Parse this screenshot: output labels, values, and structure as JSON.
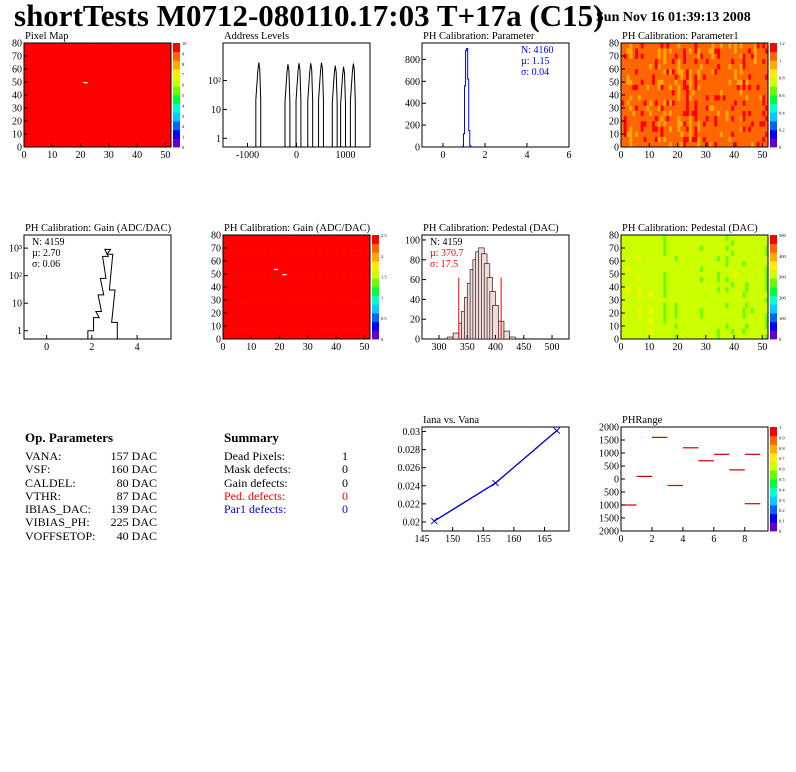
{
  "header": {
    "title": "shortTests M0712-080110.17:03 T+17a (C15)",
    "date": "Sun Nov 16 01:39:13 2008"
  },
  "colors": {
    "red": "#ff0000",
    "blue": "#0000ff",
    "hist": "#000000",
    "graph": "#0000cc",
    "phrange": "#cc0000",
    "pedfill": "#f4d9d9"
  },
  "op_params": {
    "title": "Op. Parameters",
    "rows": [
      {
        "name": "VANA:",
        "value": "157 DAC"
      },
      {
        "name": "VSF:",
        "value": "160 DAC"
      },
      {
        "name": "CALDEL:",
        "value": "80 DAC"
      },
      {
        "name": "VTHR:",
        "value": "87 DAC"
      },
      {
        "name": "IBIAS_DAC:",
        "value": "139 DAC"
      },
      {
        "name": "VIBIAS_PH:",
        "value": "225 DAC"
      },
      {
        "name": "VOFFSETOP:",
        "value": "40 DAC"
      }
    ]
  },
  "summary": {
    "title": "Summary",
    "rows": [
      {
        "name": "Dead Pixels:",
        "value": "1",
        "color": "#000000"
      },
      {
        "name": "Mask defects:",
        "value": "0",
        "color": "#000000"
      },
      {
        "name": "Gain defects:",
        "value": "0",
        "color": "#000000"
      },
      {
        "name": "Ped. defects:",
        "value": "0",
        "color": "#ff0000"
      },
      {
        "name": "Par1 defects:",
        "value": "0",
        "color": "#0000ff"
      }
    ]
  },
  "chart_data": [
    {
      "id": "pixelmap",
      "type": "heatmap",
      "title": "Pixel Map",
      "xlim": [
        0,
        52
      ],
      "ylim": [
        0,
        80
      ],
      "xticks": [
        0,
        10,
        20,
        30,
        40,
        50
      ],
      "yticks": [
        0,
        10,
        20,
        30,
        40,
        50,
        60,
        70,
        80
      ],
      "zlim": [
        0,
        10
      ],
      "zticks": [
        "0",
        "1",
        "2",
        "3",
        "4",
        "5",
        "6",
        "7",
        "8",
        "9",
        "10"
      ],
      "fill_value": 10,
      "mode": "uniform",
      "special_cells": [
        {
          "x": 21,
          "y": 49,
          "value": 0
        }
      ]
    },
    {
      "id": "addr",
      "type": "bar",
      "title": "Address Levels",
      "xlim": [
        -1500,
        1500
      ],
      "ylim": [
        0.5,
        2000
      ],
      "ylog": true,
      "xticks": [
        -1000,
        0,
        1000
      ],
      "yticks": [
        {
          "v": 1,
          "label": "1"
        },
        {
          "v": 10,
          "label": "10"
        },
        {
          "v": 100,
          "label": "10²"
        }
      ],
      "peaks": [
        {
          "x": -770,
          "h": 420
        },
        {
          "x": -175,
          "h": 370
        },
        {
          "x": 50,
          "h": 400
        },
        {
          "x": 290,
          "h": 400
        },
        {
          "x": 510,
          "h": 420
        },
        {
          "x": 790,
          "h": 330
        },
        {
          "x": 960,
          "h": 300
        },
        {
          "x": 1160,
          "h": 390
        }
      ]
    },
    {
      "id": "phpar",
      "type": "bar",
      "title": "PH Calibration: Parameter",
      "xlim": [
        -1,
        6
      ],
      "ylim": [
        0,
        950
      ],
      "xticks": [
        0,
        2,
        4,
        6
      ],
      "yticks": [
        0,
        200,
        400,
        600,
        800
      ],
      "x": [
        0.95,
        1.0,
        1.05,
        1.1,
        1.15,
        1.2,
        1.25,
        1.3
      ],
      "values": [
        5,
        120,
        560,
        880,
        900,
        620,
        150,
        10
      ],
      "stats": [
        {
          "text": "N: 4160"
        },
        {
          "text": "µ: 1.15"
        },
        {
          "text": "σ: 0.04"
        }
      ],
      "stat_color": "#0000ff",
      "line_color": "#0000ff"
    },
    {
      "id": "phpar1",
      "type": "heatmap",
      "title": "PH Calibration: Parameter1",
      "xlim": [
        0,
        52
      ],
      "ylim": [
        0,
        80
      ],
      "xticks": [
        0,
        10,
        20,
        30,
        40,
        50
      ],
      "yticks": [
        0,
        10,
        20,
        30,
        40,
        50,
        60,
        70,
        80
      ],
      "zlim": [
        0,
        1.2
      ],
      "zticks": [
        "0",
        "0.2",
        "0.4",
        "0.6",
        "0.8",
        "1",
        "1.2"
      ],
      "mode": "noisy",
      "base": 0.88,
      "spread": 0.1,
      "seed": 7
    },
    {
      "id": "gain",
      "type": "bar",
      "title": "PH Calibration: Gain (ADC/DAC)",
      "xlim": [
        -1,
        5.5
      ],
      "ylim": [
        0.5,
        3000
      ],
      "ylog": true,
      "xticks": [
        0,
        2,
        4
      ],
      "yticks": [
        {
          "v": 1,
          "label": "1"
        },
        {
          "v": 10,
          "label": "10"
        },
        {
          "v": 100,
          "label": "10²"
        },
        {
          "v": 1000,
          "label": "10³"
        }
      ],
      "x": [
        1.95,
        2.2,
        2.3,
        2.4,
        2.5,
        2.6,
        2.7,
        2.8,
        2.9,
        3.0
      ],
      "values": [
        1,
        3,
        5,
        20,
        80,
        500,
        900,
        600,
        30,
        2
      ],
      "stats": [
        {
          "text": "N: 4159"
        },
        {
          "text": "µ: 2.70"
        },
        {
          "text": "σ: 0.06"
        }
      ],
      "stat_color": "#000000",
      "line_color": "#000000"
    },
    {
      "id": "gainmap",
      "type": "heatmap",
      "title": "PH Calibration: Gain (ADC/DAC)",
      "xlim": [
        0,
        52
      ],
      "ylim": [
        0,
        80
      ],
      "xticks": [
        0,
        10,
        20,
        30,
        40,
        50
      ],
      "yticks": [
        0,
        10,
        20,
        30,
        40,
        50,
        60,
        70,
        80
      ],
      "zlim": [
        0,
        2.7
      ],
      "zticks": [
        "0",
        "0.5",
        "1",
        "1.5",
        "2",
        "2.5"
      ],
      "mode": "noisy",
      "base": 0.96,
      "spread": 0.04,
      "seed": 11,
      "special_cells": [
        {
          "x": 21,
          "y": 49,
          "value": 0
        },
        {
          "x": 18,
          "y": 53,
          "value": 0
        }
      ]
    },
    {
      "id": "ped",
      "type": "bar",
      "title": "PH Calibration: Pedestal (DAC)",
      "xlim": [
        270,
        530
      ],
      "ylim": [
        0,
        105
      ],
      "xticks": [
        300,
        350,
        400,
        450,
        500
      ],
      "yticks": [
        0,
        20,
        40,
        60,
        80,
        100
      ],
      "x": [
        320,
        330,
        340,
        345,
        350,
        355,
        360,
        365,
        370,
        375,
        380,
        385,
        390,
        395,
        400,
        410,
        420,
        430
      ],
      "values": [
        2,
        6,
        16,
        28,
        42,
        56,
        70,
        80,
        88,
        92,
        86,
        76,
        62,
        48,
        34,
        18,
        8,
        2
      ],
      "stats": [
        {
          "text": "N: 4159",
          "color": "#000000"
        },
        {
          "text": "µ: 370.7",
          "color": "#ff0000"
        },
        {
          "text": "σ: 17.5",
          "color": "#ff0000"
        }
      ],
      "stat_color": "#000000",
      "line_color": "#000000",
      "cut_lines": [
        335,
        410
      ],
      "cut_height": 62
    },
    {
      "id": "pedmap",
      "type": "heatmap",
      "title": "PH Calibration: Pedestal (DAC)",
      "xlim": [
        0,
        52
      ],
      "ylim": [
        0,
        80
      ],
      "xticks": [
        0,
        10,
        20,
        30,
        40,
        50
      ],
      "yticks": [
        0,
        10,
        20,
        30,
        40,
        50,
        60,
        70,
        80
      ],
      "zlim": [
        0,
        500
      ],
      "zticks": [
        "0",
        "100",
        "200",
        "300",
        "400",
        "500"
      ],
      "mode": "stripes",
      "base": 0.62,
      "spread": 0.08,
      "seed": 3
    },
    {
      "id": "iana",
      "type": "line",
      "title": "Iana vs. Vana",
      "xlim": [
        145,
        169
      ],
      "ylim": [
        0.019,
        0.0305
      ],
      "xticks": [
        145,
        150,
        155,
        160,
        165
      ],
      "yticks": [
        0.02,
        0.022,
        0.024,
        0.026,
        0.028,
        0.03
      ],
      "x": [
        147,
        157,
        167
      ],
      "y": [
        0.0201,
        0.0243,
        0.0301
      ]
    },
    {
      "id": "phrange",
      "type": "scatter",
      "title": "PHRange",
      "xlim": [
        0,
        9.5
      ],
      "ylim": [
        -2000,
        2000
      ],
      "xticks": [
        0,
        2,
        4,
        6,
        8
      ],
      "yticks": [
        -2000,
        -1500,
        -1000,
        -500,
        0,
        500,
        1000,
        1500,
        2000
      ],
      "ytick_labels": [
        "2000",
        "1500",
        "1000",
        "500",
        "0",
        "500",
        "1000",
        "1500",
        "2000"
      ],
      "zticks": [
        "0",
        "0.1",
        "0.2",
        "0.3",
        "0.4",
        "0.5",
        "0.6",
        "0.7",
        "0.8",
        "0.9",
        "1"
      ],
      "segments": [
        {
          "x": 0,
          "y": -1000
        },
        {
          "x": 1,
          "y": 100
        },
        {
          "x": 2,
          "y": 1600
        },
        {
          "x": 3,
          "y": -250
        },
        {
          "x": 4,
          "y": 1200
        },
        {
          "x": 5,
          "y": 700
        },
        {
          "x": 6,
          "y": 950
        },
        {
          "x": 7,
          "y": 350
        },
        {
          "x": 8,
          "y": 950
        },
        {
          "x": 8,
          "y": -950
        }
      ]
    }
  ]
}
